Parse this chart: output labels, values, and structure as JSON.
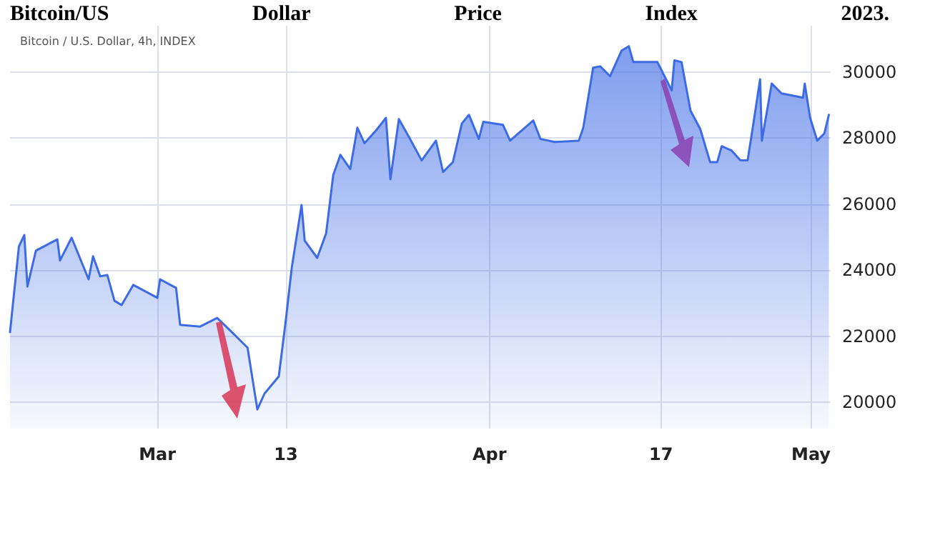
{
  "chart_data": {
    "type": "area",
    "title": "Bitcoin/US Dollar Price Index 2023.",
    "subtitle": "Bitcoin / U.S. Dollar, 4h, INDEX",
    "x": [
      "2023-02-15T06:00",
      "2023-02-16T02:00",
      "2023-02-16T14:00",
      "2023-02-16T21:00",
      "2023-02-17T16:00",
      "2023-02-19T16:00",
      "2023-02-19T22:00",
      "2023-02-21T00:00",
      "2023-02-22T14:00",
      "2023-02-23T00:00",
      "2023-02-23T16:00",
      "2023-02-24T08:00",
      "2023-02-25T00:00",
      "2023-02-25T16:00",
      "2023-02-26T18:00",
      "2023-03-01T00:00",
      "2023-03-01T06:00",
      "2023-03-02T18:00",
      "2023-03-03T03:00",
      "2023-03-05T00:00",
      "2023-03-06T14:00",
      "2023-03-08T02:00",
      "2023-03-09T10:00",
      "2023-03-10T08:00",
      "2023-03-11T00:00",
      "2023-03-12T08:00",
      "2023-03-13T00:00",
      "2023-03-13T13:00",
      "2023-03-14T11:00",
      "2023-03-14T18:00",
      "2023-03-15T22:00",
      "2023-03-16T18:00",
      "2023-03-17T10:00",
      "2023-03-18T02:00",
      "2023-03-19T00:00",
      "2023-03-19T16:00",
      "2023-03-20T08:00",
      "2023-03-21T10:00",
      "2023-03-22T08:00",
      "2023-03-22T18:00",
      "2023-03-23T13:00",
      "2023-03-24T14:00",
      "2023-03-25T16:00",
      "2023-03-27T00:00",
      "2023-03-27T16:00",
      "2023-03-28T14:00",
      "2023-03-29T10:00",
      "2023-03-30T02:00",
      "2023-03-31T00:00",
      "2023-03-31T10:00",
      "2023-04-02T06:00",
      "2023-04-02T22:00",
      "2023-04-05T02:00",
      "2023-04-05T18:00",
      "2023-04-07T02:00",
      "2023-04-09T08:00",
      "2023-04-09T18:00",
      "2023-04-10T16:00",
      "2023-04-11T08:00",
      "2023-04-12T06:00",
      "2023-04-13T08:00",
      "2023-04-14T00:00",
      "2023-04-14T10:00",
      "2023-04-16T16:00",
      "2023-04-17T08:00",
      "2023-04-18T00:00",
      "2023-04-18T06:00",
      "2023-04-18T22:00",
      "2023-04-19T18:00",
      "2023-04-20T16:00",
      "2023-04-21T14:00",
      "2023-04-22T06:00",
      "2023-04-22T16:00",
      "2023-04-23T14:00",
      "2023-04-24T10:00",
      "2023-04-25T02:00",
      "2023-04-25T14:00",
      "2023-04-26T06:00",
      "2023-04-26T10:00",
      "2023-04-27T08:00",
      "2023-04-28T06:00",
      "2023-04-30T06:00",
      "2023-04-30T10:00",
      "2023-04-30T22:00",
      "2023-05-01T14:00",
      "2023-05-02T06:00",
      "2023-05-02T16:00"
    ],
    "series": [
      {
        "color": "#3d6be6",
        "values": [
          22120,
          24720,
          25060,
          23500,
          24590,
          24930,
          24290,
          24980,
          23720,
          24420,
          23810,
          23850,
          23070,
          22940,
          23550,
          23160,
          23720,
          23460,
          22340,
          22290,
          22550,
          22080,
          21650,
          19780,
          20260,
          20780,
          22510,
          24070,
          25970,
          24890,
          24370,
          25110,
          26880,
          27490,
          27060,
          28310,
          27840,
          28230,
          28610,
          26750,
          28570,
          27970,
          27320,
          27920,
          26970,
          27270,
          28440,
          28700,
          27970,
          28490,
          28400,
          27920,
          28530,
          27970,
          27880,
          27920,
          28310,
          30130,
          30170,
          29870,
          30650,
          30780,
          30300,
          30300,
          29870,
          29440,
          30350,
          30300,
          28830,
          28270,
          27270,
          27270,
          27750,
          27620,
          27320,
          27320,
          28350,
          29780,
          27920,
          29650,
          29350,
          29220,
          29650,
          28610,
          27920,
          28140,
          28700
        ]
      }
    ],
    "xlim": [
      "2023-02-15T06:00",
      "2023-05-02T20:00"
    ],
    "xticks": [
      {
        "value": "2023-03-01",
        "label": "Mar"
      },
      {
        "value": "2023-03-13",
        "label": "13"
      },
      {
        "value": "2023-04-01",
        "label": "Apr"
      },
      {
        "value": "2023-04-17",
        "label": "17"
      },
      {
        "value": "2023-05-01",
        "label": "May"
      }
    ],
    "ylim": [
      19200,
      31400
    ],
    "yticks": [
      20000,
      22000,
      24000,
      26000,
      28000,
      30000
    ],
    "grid": true,
    "marker": "none",
    "line_style": "solid"
  }
}
